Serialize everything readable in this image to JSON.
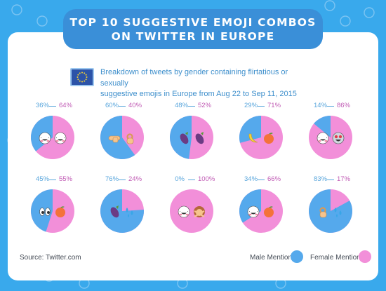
{
  "title_line1": "TOP 10 SUGGESTIVE EMOJI COMBOS",
  "title_line2": "ON TWITTER IN EUROPE",
  "subtitle_line1": "Breakdown of tweets by gender containing flirtatious or sexually",
  "subtitle_line2": "suggestive emojis in Europe from Aug 22 to Sep 11, 2015",
  "source": "Source: Twitter.com",
  "legend": {
    "male": "Male Mentions",
    "female": "Female Mentions"
  },
  "colors": {
    "male": "#55a9ec",
    "female": "#f28fd9",
    "background": "#39a9ec",
    "banner": "#3a8fd8"
  },
  "chart_data": {
    "type": "pie",
    "series_names": [
      "Male Mentions",
      "Female Mentions"
    ],
    "charts": [
      {
        "male_label": "36%",
        "female_label": "64%",
        "male": 36,
        "female": 64,
        "emojis": [
          "grinning-face",
          "grinning-face"
        ]
      },
      {
        "male_label": "60%",
        "female_label": "40%",
        "male": 60,
        "female": 40,
        "emojis": [
          "pointing-hand",
          "ok-hand"
        ]
      },
      {
        "male_label": "48%",
        "female_label": "52%",
        "male": 48,
        "female": 52,
        "emojis": [
          "eggplant",
          "eggplant"
        ]
      },
      {
        "male_label": "29%",
        "female_label": "71%",
        "male": 29,
        "female": 71,
        "emojis": [
          "banana",
          "peach"
        ]
      },
      {
        "male_label": "14%",
        "female_label": "86%",
        "male": 14,
        "female": 86,
        "emojis": [
          "grinning-face",
          "heart-eyes-face"
        ]
      },
      {
        "male_label": "45%",
        "female_label": "55%",
        "male": 45,
        "female": 55,
        "emojis": [
          "eyes",
          "peach"
        ]
      },
      {
        "male_label": "76%",
        "female_label": "24%",
        "male": 76,
        "female": 24,
        "emojis": [
          "eggplant",
          "sweat-droplets"
        ]
      },
      {
        "male_label": "0%",
        "female_label": "100%",
        "male": 0,
        "female": 100,
        "emojis": [
          "grinning-face",
          "woman-gesturing-no"
        ]
      },
      {
        "male_label": "34%",
        "female_label": "66%",
        "male": 34,
        "female": 66,
        "emojis": [
          "grinning-face",
          "peach"
        ]
      },
      {
        "male_label": "83%",
        "female_label": "17%",
        "male": 83,
        "female": 17,
        "emojis": [
          "ok-hand",
          "sweat-droplets"
        ]
      }
    ]
  }
}
